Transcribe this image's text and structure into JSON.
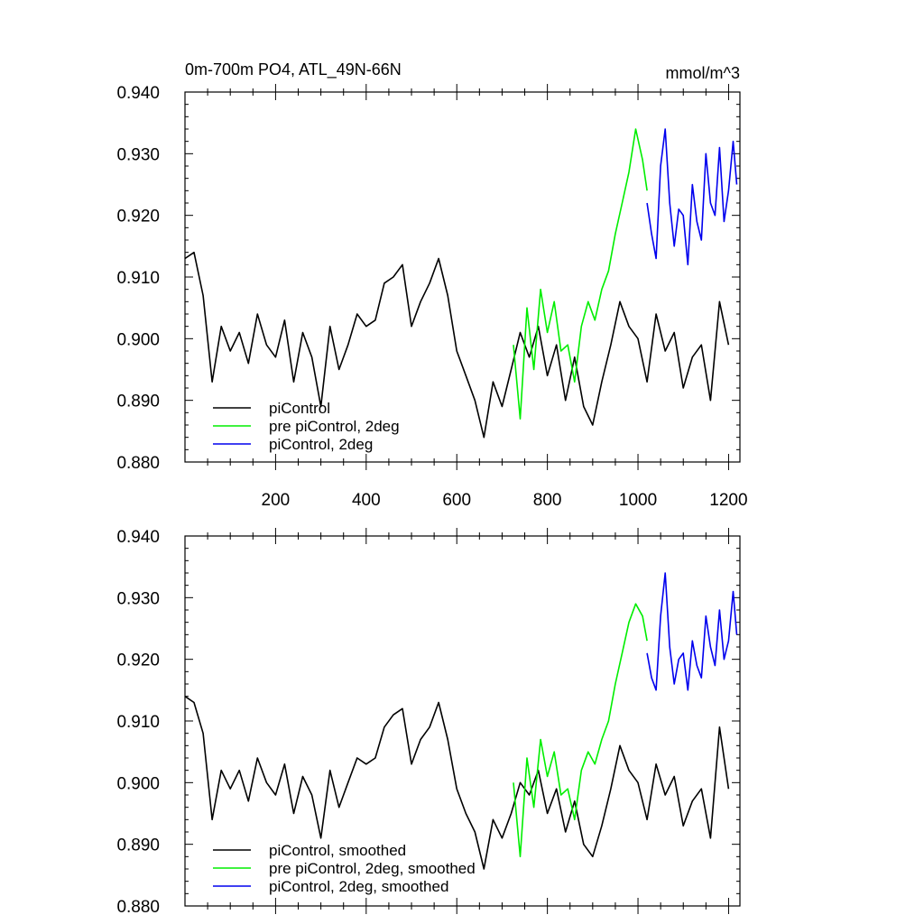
{
  "chart_data": [
    {
      "type": "line",
      "title": "0m-700m PO4, ATL_49N-66N",
      "units": "mmol/m^3",
      "xlim": [
        0,
        1225
      ],
      "ylim": [
        0.88,
        0.94
      ],
      "x_ticks": [
        200,
        400,
        600,
        800,
        1000,
        1200
      ],
      "y_ticks": [
        "0.880",
        "0.890",
        "0.900",
        "0.910",
        "0.920",
        "0.930",
        "0.940"
      ],
      "legend_position": "bottom-left",
      "series": [
        {
          "name": "piControl",
          "color": "#000000",
          "x": [
            0,
            20,
            40,
            60,
            80,
            100,
            120,
            140,
            160,
            180,
            200,
            220,
            240,
            260,
            280,
            300,
            320,
            340,
            360,
            380,
            400,
            420,
            440,
            460,
            480,
            500,
            520,
            540,
            560,
            580,
            600,
            620,
            640,
            660,
            680,
            700,
            720,
            740,
            760,
            780,
            800,
            820,
            840,
            860,
            880,
            900,
            920,
            940,
            960,
            980,
            1000,
            1020,
            1040,
            1060,
            1080,
            1100,
            1120,
            1140,
            1160,
            1180,
            1200
          ],
          "y": [
            0.913,
            0.914,
            0.907,
            0.893,
            0.902,
            0.898,
            0.901,
            0.896,
            0.904,
            0.899,
            0.897,
            0.903,
            0.893,
            0.901,
            0.897,
            0.889,
            0.902,
            0.895,
            0.899,
            0.904,
            0.902,
            0.903,
            0.909,
            0.91,
            0.912,
            0.902,
            0.906,
            0.909,
            0.913,
            0.907,
            0.898,
            0.894,
            0.89,
            0.884,
            0.893,
            0.889,
            0.895,
            0.901,
            0.897,
            0.902,
            0.894,
            0.899,
            0.89,
            0.897,
            0.889,
            0.886,
            0.893,
            0.899,
            0.906,
            0.902,
            0.9,
            0.893,
            0.904,
            0.898,
            0.901,
            0.892,
            0.897,
            0.899,
            0.89,
            0.906,
            0.899
          ]
        },
        {
          "name": "pre piControl, 2deg",
          "color": "#00ee00",
          "x": [
            725,
            740,
            755,
            770,
            785,
            800,
            815,
            830,
            845,
            860,
            875,
            890,
            905,
            920,
            935,
            950,
            965,
            980,
            995,
            1010,
            1020
          ],
          "y": [
            0.899,
            0.887,
            0.905,
            0.895,
            0.908,
            0.901,
            0.906,
            0.898,
            0.899,
            0.893,
            0.902,
            0.906,
            0.903,
            0.908,
            0.911,
            0.917,
            0.922,
            0.927,
            0.934,
            0.929,
            0.924
          ]
        },
        {
          "name": "piControl, 2deg",
          "color": "#0000ee",
          "x": [
            1020,
            1030,
            1040,
            1050,
            1060,
            1070,
            1080,
            1090,
            1100,
            1110,
            1120,
            1130,
            1140,
            1150,
            1160,
            1170,
            1180,
            1190,
            1200,
            1210,
            1218
          ],
          "y": [
            0.922,
            0.917,
            0.913,
            0.928,
            0.934,
            0.922,
            0.915,
            0.921,
            0.92,
            0.912,
            0.925,
            0.919,
            0.916,
            0.93,
            0.922,
            0.92,
            0.931,
            0.919,
            0.924,
            0.932,
            0.925
          ]
        }
      ]
    },
    {
      "type": "line",
      "title": "",
      "xlim": [
        0,
        1225
      ],
      "ylim": [
        0.88,
        0.94
      ],
      "y_ticks": [
        "0.880",
        "0.890",
        "0.900",
        "0.910",
        "0.920",
        "0.930",
        "0.940"
      ],
      "legend_position": "bottom-left",
      "series": [
        {
          "name": "piControl, smoothed",
          "color": "#000000",
          "x": [
            0,
            20,
            40,
            60,
            80,
            100,
            120,
            140,
            160,
            180,
            200,
            220,
            240,
            260,
            280,
            300,
            320,
            340,
            360,
            380,
            400,
            420,
            440,
            460,
            480,
            500,
            520,
            540,
            560,
            580,
            600,
            620,
            640,
            660,
            680,
            700,
            720,
            740,
            760,
            780,
            800,
            820,
            840,
            860,
            880,
            900,
            920,
            940,
            960,
            980,
            1000,
            1020,
            1040,
            1060,
            1080,
            1100,
            1120,
            1140,
            1160,
            1180,
            1200
          ],
          "y": [
            0.914,
            0.913,
            0.908,
            0.894,
            0.902,
            0.899,
            0.902,
            0.897,
            0.904,
            0.9,
            0.898,
            0.903,
            0.895,
            0.901,
            0.898,
            0.891,
            0.902,
            0.896,
            0.9,
            0.904,
            0.903,
            0.904,
            0.909,
            0.911,
            0.912,
            0.903,
            0.907,
            0.909,
            0.913,
            0.907,
            0.899,
            0.895,
            0.892,
            0.886,
            0.894,
            0.891,
            0.895,
            0.9,
            0.898,
            0.902,
            0.895,
            0.899,
            0.892,
            0.897,
            0.89,
            0.888,
            0.893,
            0.899,
            0.906,
            0.902,
            0.9,
            0.894,
            0.903,
            0.898,
            0.901,
            0.893,
            0.897,
            0.899,
            0.891,
            0.909,
            0.899
          ]
        },
        {
          "name": "pre piControl, 2deg, smoothed",
          "color": "#00ee00",
          "x": [
            725,
            740,
            755,
            770,
            785,
            800,
            815,
            830,
            845,
            860,
            875,
            890,
            905,
            920,
            935,
            950,
            965,
            980,
            995,
            1010,
            1020
          ],
          "y": [
            0.9,
            0.888,
            0.904,
            0.896,
            0.907,
            0.901,
            0.905,
            0.898,
            0.899,
            0.894,
            0.902,
            0.905,
            0.903,
            0.907,
            0.91,
            0.916,
            0.921,
            0.926,
            0.929,
            0.927,
            0.923
          ]
        },
        {
          "name": "piControl, 2deg, smoothed",
          "color": "#0000ee",
          "x": [
            1020,
            1030,
            1040,
            1050,
            1060,
            1070,
            1080,
            1090,
            1100,
            1110,
            1120,
            1130,
            1140,
            1150,
            1160,
            1170,
            1180,
            1190,
            1200,
            1210,
            1218
          ],
          "y": [
            0.921,
            0.917,
            0.915,
            0.927,
            0.934,
            0.922,
            0.916,
            0.92,
            0.921,
            0.915,
            0.923,
            0.919,
            0.917,
            0.927,
            0.922,
            0.919,
            0.928,
            0.92,
            0.923,
            0.931,
            0.924
          ]
        }
      ]
    }
  ]
}
